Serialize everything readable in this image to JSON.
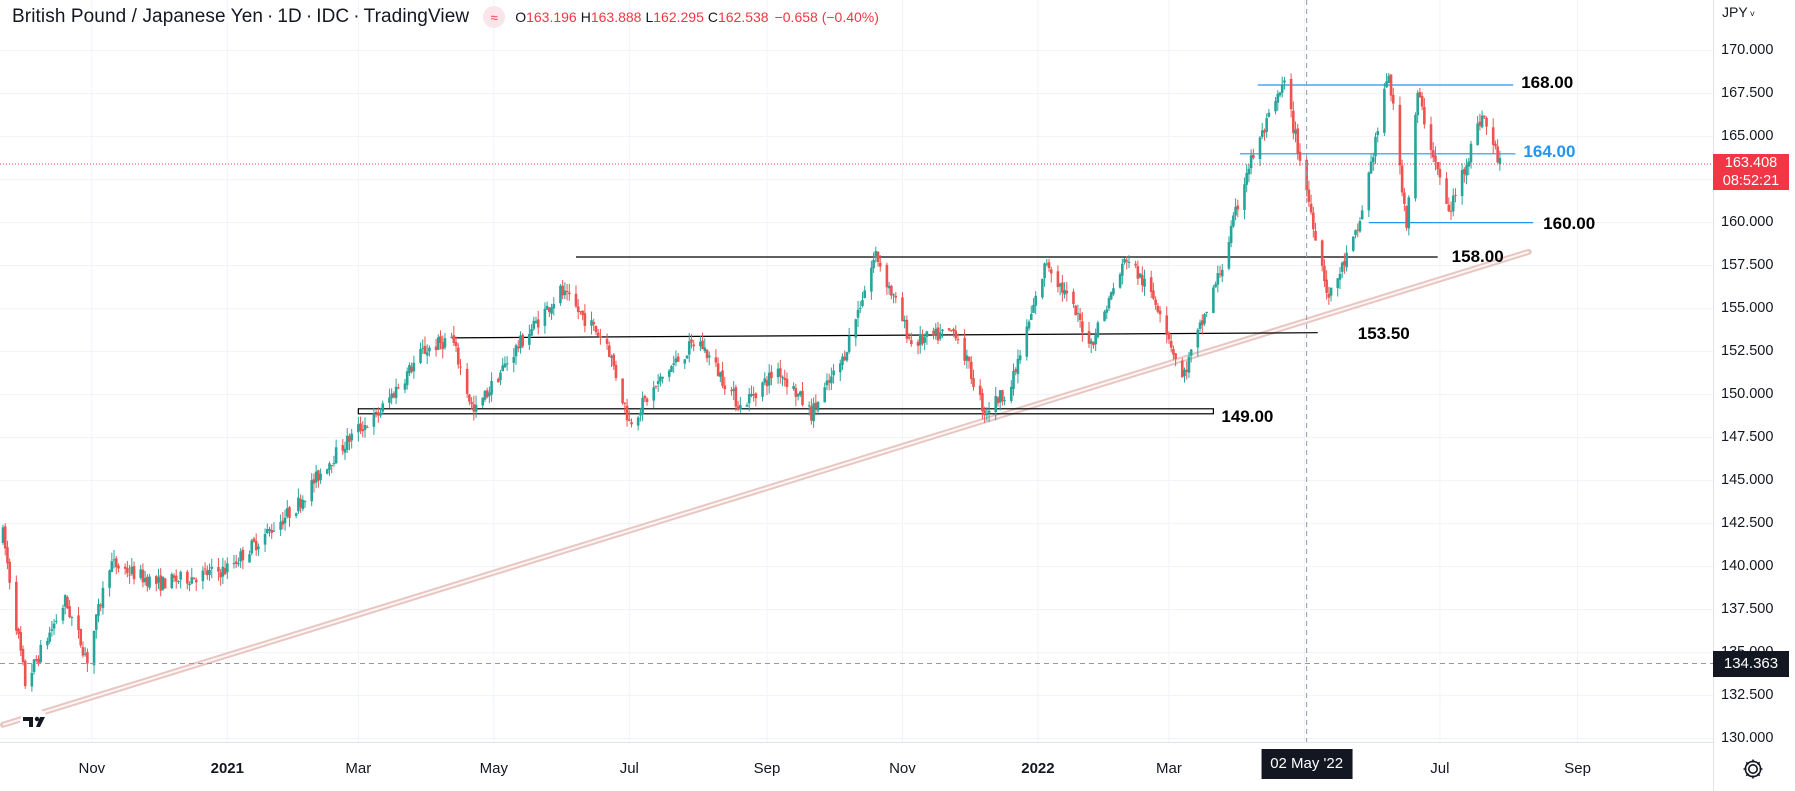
{
  "header": {
    "symbol": "British Pound / Japanese Yen",
    "interval": "1D",
    "exchange": "IDC",
    "source": "TradingView",
    "open_label": "O",
    "open": "163.196",
    "high_label": "H",
    "high": "163.888",
    "low_label": "L",
    "low": "162.295",
    "close_label": "C",
    "close": "162.538",
    "change": "−0.658 (−0.40%)"
  },
  "price_scale": {
    "currency": "JPY",
    "ticks": [
      "170.000",
      "167.500",
      "165.000",
      "162.500",
      "160.000",
      "157.500",
      "155.000",
      "152.500",
      "150.000",
      "147.500",
      "145.000",
      "142.500",
      "140.000",
      "137.500",
      "135.000",
      "132.500",
      "130.000"
    ],
    "live_price": "163.408",
    "countdown": "08:52:21",
    "crosshair_price": "134.363"
  },
  "time_axis": {
    "labels": [
      {
        "text": "Nov",
        "year": false
      },
      {
        "text": "2021",
        "year": true
      },
      {
        "text": "Mar",
        "year": false
      },
      {
        "text": "May",
        "year": false
      },
      {
        "text": "Jul",
        "year": false
      },
      {
        "text": "Sep",
        "year": false
      },
      {
        "text": "Nov",
        "year": false
      },
      {
        "text": "2022",
        "year": true
      },
      {
        "text": "Mar",
        "year": false
      },
      {
        "text": "May",
        "year": false
      },
      {
        "text": "Jul",
        "year": false
      },
      {
        "text": "Sep",
        "year": false
      }
    ],
    "crosshair_date": "02 May '22"
  },
  "levels": [
    {
      "label": "168.00",
      "value": 168.0,
      "color": "#2196f3",
      "label_color": "#000000"
    },
    {
      "label": "164.00",
      "value": 164.0,
      "color": "#2196f3",
      "label_color": "#2196f3"
    },
    {
      "label": "160.00",
      "value": 160.0,
      "color": "#2196f3",
      "label_color": "#000000"
    },
    {
      "label": "158.00",
      "value": 158.0,
      "color": "#000000",
      "label_color": "#000000"
    },
    {
      "label": "153.50",
      "value": 153.5,
      "color": "#000000",
      "label_color": "#000000"
    },
    {
      "label": "149.00",
      "value": 149.0,
      "color": "#000000",
      "label_color": "#000000"
    }
  ],
  "colors": {
    "up": "#26a69a",
    "down": "#ef5350",
    "trendline": "#e8c7c3",
    "grid": "#f0f3fa",
    "crosshair": "#9598a1",
    "live_price_line": "#f23645"
  },
  "icons": {
    "symbol_badge": "≈",
    "logo": "tradingview-logo",
    "settings": "gear-icon",
    "currency_caret": "˅"
  },
  "chart_data": {
    "type": "candlestick",
    "title": "British Pound / Japanese Yen",
    "ylabel": "JPY",
    "ylim": [
      129.8,
      171.2
    ],
    "xlim": [
      "2020-09-22",
      "2022-09-30"
    ],
    "grid": true,
    "trendline": {
      "from": {
        "date": "2020-09-22",
        "value": 130.8
      },
      "to": {
        "date": "2022-08-10",
        "value": 158.3
      }
    },
    "crosshair": {
      "date": "2022-05-02",
      "value": 134.363
    },
    "series": [
      {
        "date": "2020-09-22",
        "high": 141.9
      },
      {
        "date": "2020-10-02",
        "low": 133.2
      },
      {
        "date": "2020-10-20",
        "high": 138.0
      },
      {
        "date": "2020-10-30",
        "low": 134.6
      },
      {
        "date": "2020-11-09",
        "high": 140.2
      },
      {
        "date": "2020-12-01",
        "value": 139.0
      },
      {
        "date": "2020-12-31",
        "value": 139.8
      },
      {
        "date": "2021-01-15",
        "value": 141.5
      },
      {
        "date": "2021-02-01",
        "value": 143.5
      },
      {
        "date": "2021-02-15",
        "value": 146.0
      },
      {
        "date": "2021-03-01",
        "value": 148.0
      },
      {
        "date": "2021-03-09",
        "low": 148.7
      },
      {
        "date": "2021-03-30",
        "high": 152.5
      },
      {
        "date": "2021-04-12",
        "high": 153.3
      },
      {
        "date": "2021-04-22",
        "low": 148.9
      },
      {
        "date": "2021-05-10",
        "value": 152.5
      },
      {
        "date": "2021-05-31",
        "high": 156.0
      },
      {
        "date": "2021-06-21",
        "value": 153.0
      },
      {
        "date": "2021-07-01",
        "low": 148.4
      },
      {
        "date": "2021-07-19",
        "value": 151.5
      },
      {
        "date": "2021-08-01",
        "high": 153.2
      },
      {
        "date": "2021-08-20",
        "low": 149.3
      },
      {
        "date": "2021-09-06",
        "value": 151.5
      },
      {
        "date": "2021-09-21",
        "low": 148.9
      },
      {
        "date": "2021-10-05",
        "value": 152.0
      },
      {
        "date": "2021-10-20",
        "high": 158.2
      },
      {
        "date": "2021-11-05",
        "value": 153.0
      },
      {
        "date": "2021-11-25",
        "value": 153.7
      },
      {
        "date": "2021-12-08",
        "low": 149.0
      },
      {
        "date": "2021-12-20",
        "value": 150.5
      },
      {
        "date": "2022-01-05",
        "high": 157.8
      },
      {
        "date": "2022-01-25",
        "low": 153.0
      },
      {
        "date": "2022-02-10",
        "high": 158.0
      },
      {
        "date": "2022-02-25",
        "value": 155.0
      },
      {
        "date": "2022-03-07",
        "low": 150.9
      },
      {
        "date": "2022-03-25",
        "value": 157.5
      },
      {
        "date": "2022-04-05",
        "value": 163.0
      },
      {
        "date": "2022-04-22",
        "high": 168.1
      },
      {
        "date": "2022-05-05",
        "value": 160.0
      },
      {
        "date": "2022-05-12",
        "low": 155.6
      },
      {
        "date": "2022-05-25",
        "value": 159.5
      },
      {
        "date": "2022-06-08",
        "high": 168.7
      },
      {
        "date": "2022-06-16",
        "low": 160.0
      },
      {
        "date": "2022-06-21",
        "high": 167.5
      },
      {
        "date": "2022-07-05",
        "low": 160.5
      },
      {
        "date": "2022-07-20",
        "high": 166.3
      },
      {
        "date": "2022-07-28",
        "value": 163.408
      }
    ]
  }
}
